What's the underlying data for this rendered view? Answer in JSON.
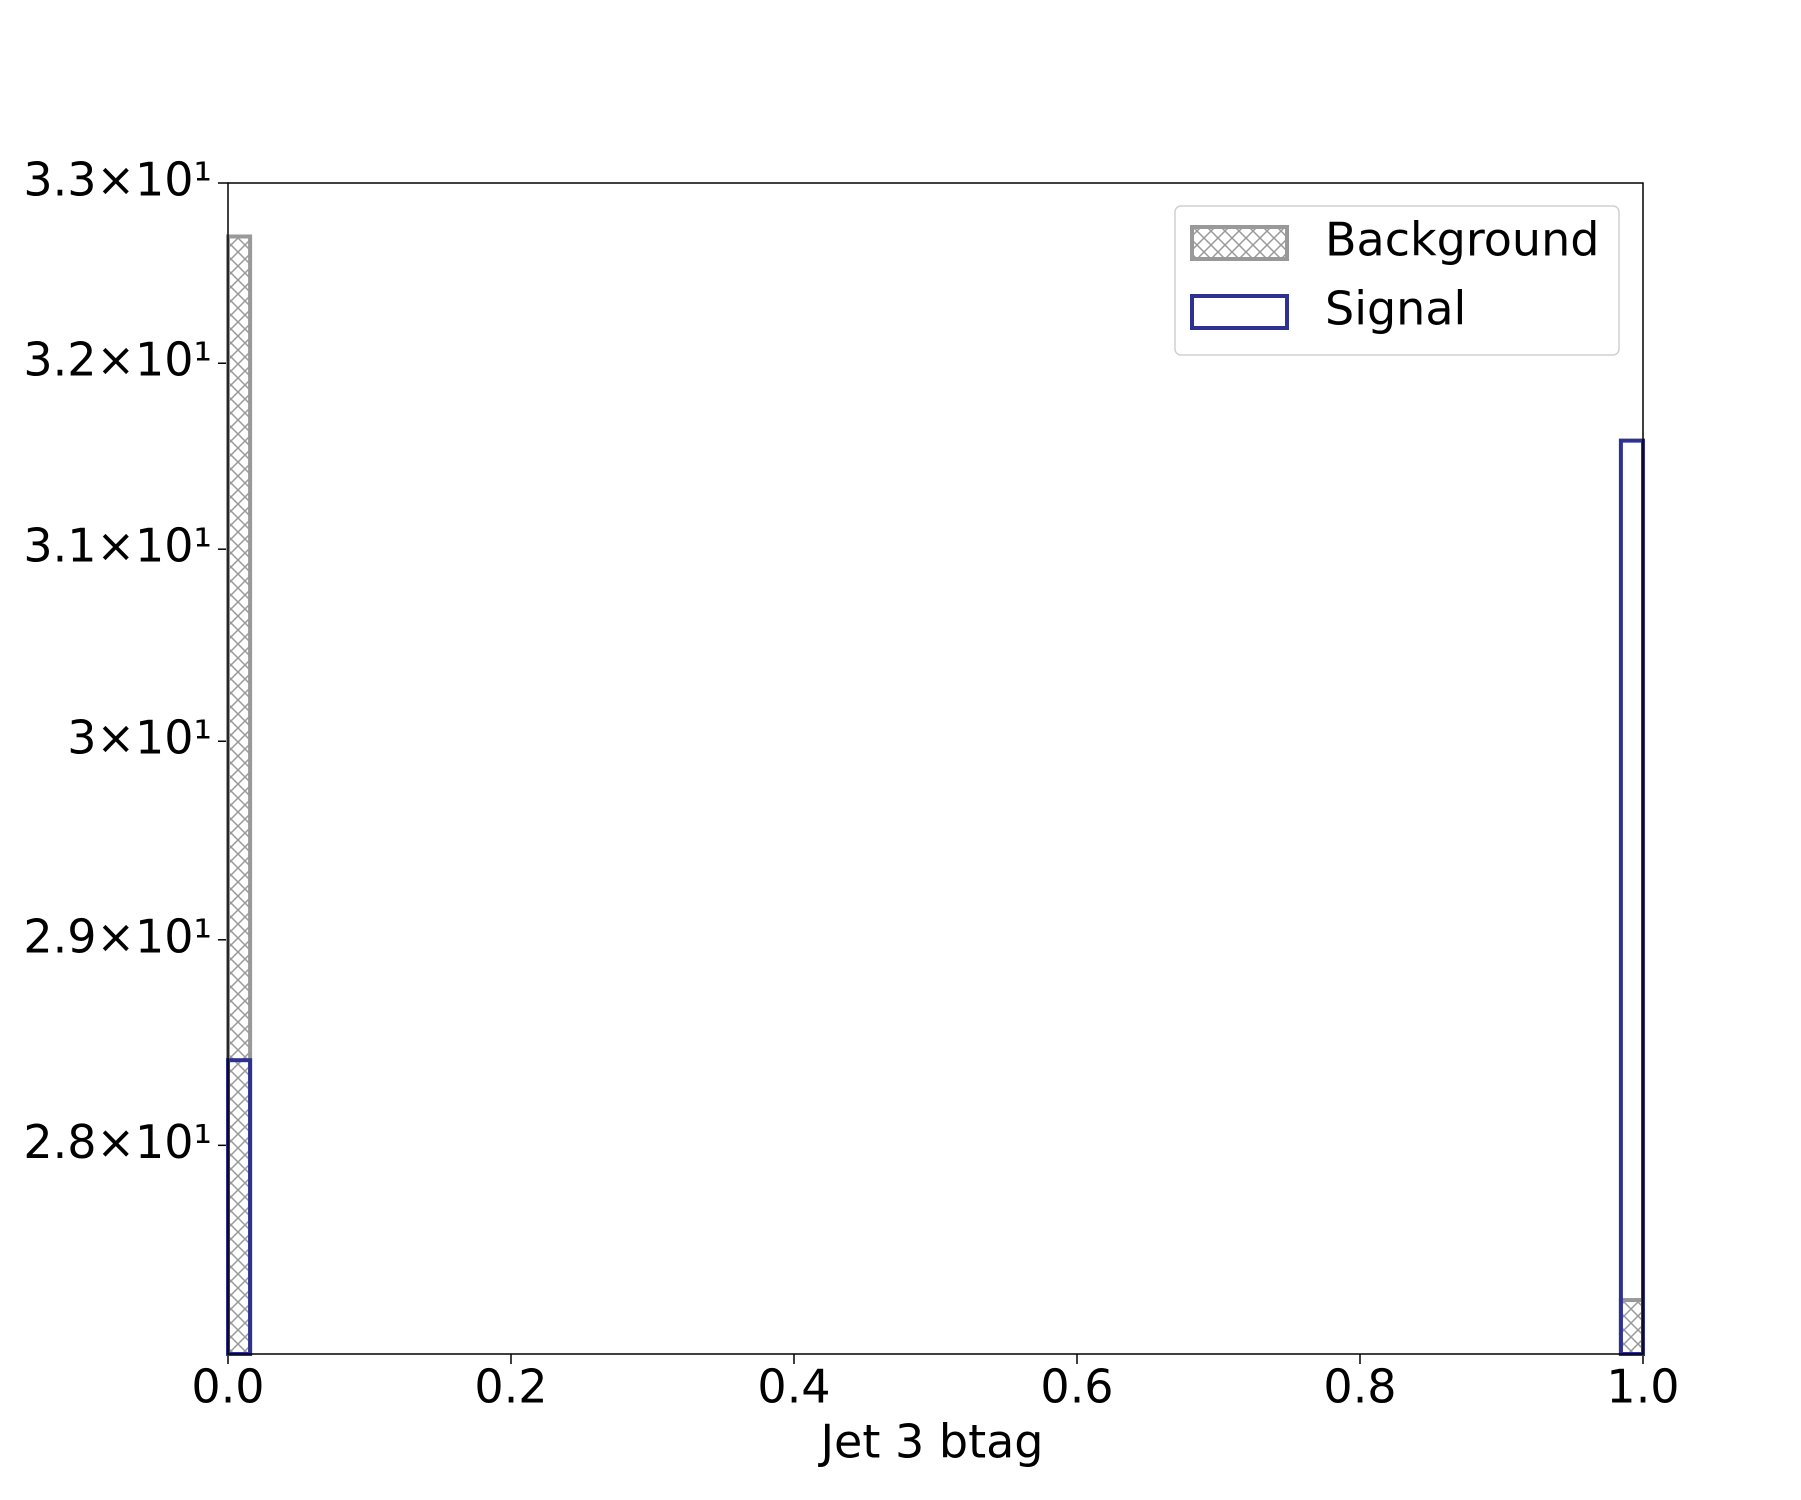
{
  "chart_data": {
    "type": "histogram",
    "xlabel": "Jet 3 btag",
    "yscale": "log",
    "legend": "upper right",
    "bins": [
      0,
      0.015625,
      0.03125,
      0.046875,
      0.0625,
      0.078125,
      0.09375,
      0.109375,
      0.125,
      0.140625,
      0.15625,
      0.171875,
      0.1875,
      0.203125,
      0.21875,
      0.234375,
      0.25,
      0.265625,
      0.28125,
      0.296875,
      0.3125,
      0.328125,
      0.34375,
      0.359375,
      0.375,
      0.390625,
      0.40625,
      0.421875,
      0.4375,
      0.453125,
      0.46875,
      0.484375,
      0.5,
      0.515625,
      0.53125,
      0.546875,
      0.5625,
      0.578125,
      0.59375,
      0.609375,
      0.625,
      0.640625,
      0.65625,
      0.671875,
      0.6875,
      0.703125,
      0.71875,
      0.734375,
      0.75,
      0.765625,
      0.78125,
      0.796875,
      0.8125,
      0.828125,
      0.84375,
      0.859375,
      0.875,
      0.890625,
      0.90625,
      0.921875,
      0.9375,
      0.953125,
      0.96875,
      0.984375,
      1
    ],
    "series": [
      {
        "name": "Background",
        "color": "#999999",
        "hatch": "xx",
        "values": [
          32.7,
          0,
          0,
          0,
          0,
          0,
          0,
          0,
          0,
          0,
          0,
          0,
          0,
          0,
          0,
          0,
          0,
          0,
          0,
          0,
          0,
          0,
          0,
          0,
          0,
          0,
          0,
          0,
          0,
          0,
          0,
          0,
          0,
          0,
          0,
          0,
          0,
          0,
          0,
          0,
          0,
          0,
          0,
          0,
          0,
          0,
          0,
          0,
          0,
          0,
          0,
          0,
          0,
          0,
          0,
          0,
          0,
          0,
          0,
          0,
          0,
          0,
          0,
          27.27
        ]
      },
      {
        "name": "Signal",
        "color": "#2e3192",
        "values": [
          28.41,
          0,
          0,
          0,
          0,
          0,
          0,
          0,
          0,
          0,
          0,
          0,
          0,
          0,
          0,
          0,
          0,
          0,
          0,
          0,
          0,
          0,
          0,
          0,
          0,
          0,
          0,
          0,
          0,
          0,
          0,
          0,
          0,
          0,
          0,
          0,
          0,
          0,
          0,
          0,
          0,
          0,
          0,
          0,
          0,
          0,
          0,
          0,
          0,
          0,
          0,
          0,
          0,
          0,
          0,
          0,
          0,
          0,
          0,
          0,
          0,
          0,
          0,
          31.58
        ]
      }
    ],
    "xlim": [
      0,
      1
    ],
    "xticks": [
      {
        "value": 0,
        "label": "0.0"
      },
      {
        "value": 0.2,
        "label": "0.2"
      },
      {
        "value": 0.4,
        "label": "0.4"
      },
      {
        "value": 0.6,
        "label": "0.6"
      },
      {
        "value": 0.8,
        "label": "0.8"
      },
      {
        "value": 1,
        "label": "1.0"
      }
    ],
    "ylim": [
      27.02,
      33.0
    ],
    "yticks": [
      {
        "value": 28,
        "label": "2.8×10¹"
      },
      {
        "value": 29,
        "label": "2.9×10¹"
      },
      {
        "value": 30,
        "label": "3×10¹"
      },
      {
        "value": 31,
        "label": "3.1×10¹"
      },
      {
        "value": 32,
        "label": "3.2×10¹"
      },
      {
        "value": 33,
        "label": "3.3×10¹"
      }
    ]
  }
}
